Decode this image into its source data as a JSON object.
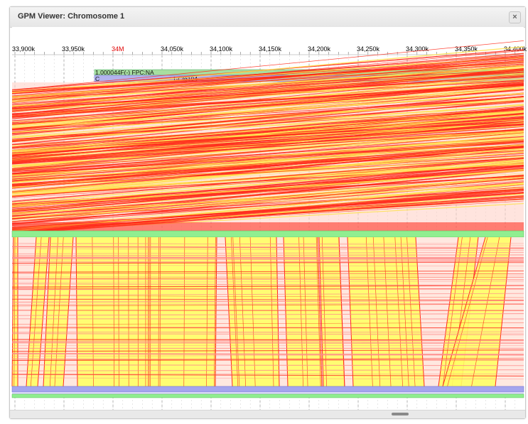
{
  "window": {
    "title": "GPM Viewer: Chromosome 1",
    "close_label": "×"
  },
  "ruler": {
    "ticks": [
      "33,900k",
      "33,950k",
      "34M",
      "34,050k",
      "34,100k",
      "34,150k",
      "34,200k",
      "34,250k",
      "34,300k",
      "34,350k",
      "34,400k"
    ],
    "highlight_tick": "34M",
    "highlight_color": "#e00000"
  },
  "tracks": {
    "contig_label": "1.000044F(-) FPC:NA",
    "contig_color": "#a8dea0",
    "ctg_left_label": "C",
    "ctg_label": "1-Ctg104",
    "ctg_color": "#b3b3ee"
  },
  "colors": {
    "red_line": "#ff2a1a",
    "yellow_fill": "#ffff66",
    "middle_band": "#90ee90",
    "bottom_band": "#a5a5ee"
  }
}
